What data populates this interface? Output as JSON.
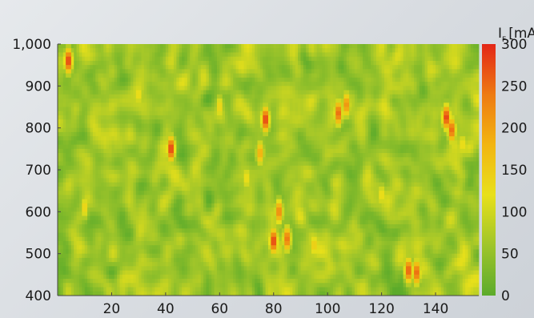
{
  "chart_data": {
    "type": "heatmap",
    "title": "",
    "xlabel": "",
    "ylabel": "",
    "x_ticks": [
      20,
      40,
      60,
      80,
      100,
      120,
      140
    ],
    "y_ticks": [
      400,
      500,
      600,
      700,
      800,
      900,
      1000
    ],
    "y_tick_labels": [
      "400",
      "500",
      "600",
      "700",
      "800",
      "900",
      "1,000"
    ],
    "xlim": [
      0,
      156
    ],
    "ylim": [
      400,
      1000
    ],
    "colorbar": {
      "label": "I",
      "label_subscript": "F",
      "label_unit": "[mA]",
      "ticks": [
        0,
        50,
        100,
        150,
        200,
        250,
        300
      ],
      "range": [
        0,
        300
      ],
      "colors": [
        "#5cab2b",
        "#9fc52a",
        "#e8e01a",
        "#f2b512",
        "#ee7a12",
        "#e32617"
      ]
    },
    "background_level_mA": 60,
    "hotspots": [
      {
        "x": 4,
        "y": 960,
        "peak_mA": 300
      },
      {
        "x": 42,
        "y": 750,
        "peak_mA": 300
      },
      {
        "x": 77,
        "y": 820,
        "peak_mA": 300
      },
      {
        "x": 75,
        "y": 740,
        "peak_mA": 200
      },
      {
        "x": 80,
        "y": 530,
        "peak_mA": 300
      },
      {
        "x": 82,
        "y": 600,
        "peak_mA": 240
      },
      {
        "x": 85,
        "y": 535,
        "peak_mA": 260
      },
      {
        "x": 104,
        "y": 835,
        "peak_mA": 270
      },
      {
        "x": 107,
        "y": 855,
        "peak_mA": 230
      },
      {
        "x": 130,
        "y": 460,
        "peak_mA": 280
      },
      {
        "x": 133,
        "y": 455,
        "peak_mA": 270
      },
      {
        "x": 144,
        "y": 825,
        "peak_mA": 300
      },
      {
        "x": 146,
        "y": 795,
        "peak_mA": 270
      },
      {
        "x": 95,
        "y": 520,
        "peak_mA": 160
      },
      {
        "x": 10,
        "y": 610,
        "peak_mA": 150
      },
      {
        "x": 30,
        "y": 880,
        "peak_mA": 140
      },
      {
        "x": 60,
        "y": 850,
        "peak_mA": 150
      },
      {
        "x": 70,
        "y": 680,
        "peak_mA": 140
      },
      {
        "x": 120,
        "y": 640,
        "peak_mA": 140
      },
      {
        "x": 150,
        "y": 760,
        "peak_mA": 140
      }
    ]
  }
}
